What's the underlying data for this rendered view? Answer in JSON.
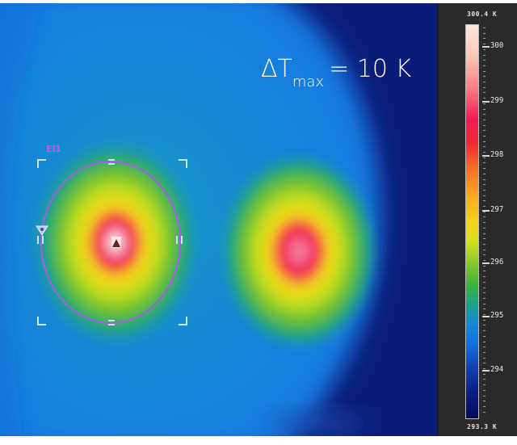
{
  "annotation": {
    "delta_symbol": "ΔT",
    "delta_subscript": "max",
    "delta_value": "= 10 K"
  },
  "roi": {
    "name": "El1",
    "shape": "ellipse",
    "color": "#a35ee8",
    "marker": "max-temperature-triangle",
    "min_marker": "min-temperature-triangle"
  },
  "hotspots": [
    {
      "name": "left-hotspot",
      "marked": true
    },
    {
      "name": "right-hotspot",
      "marked": false
    }
  ],
  "colorbar": {
    "max_label": "300.4 K",
    "min_label": "293.3 K",
    "ticks": [
      "300",
      "299",
      "298",
      "297",
      "296",
      "295",
      "294"
    ],
    "colors": {
      "hot": "#fde8dc",
      "red": "#f21a55",
      "orange": "#fbad20",
      "yellow": "#f5d21c",
      "green": "#3db23b",
      "blue": "#1887d8",
      "cold": "#050a5a"
    }
  },
  "colors": {
    "background_cold": "#0b1c78",
    "background_object": "#1178e0",
    "panel": "#2b2a28"
  }
}
